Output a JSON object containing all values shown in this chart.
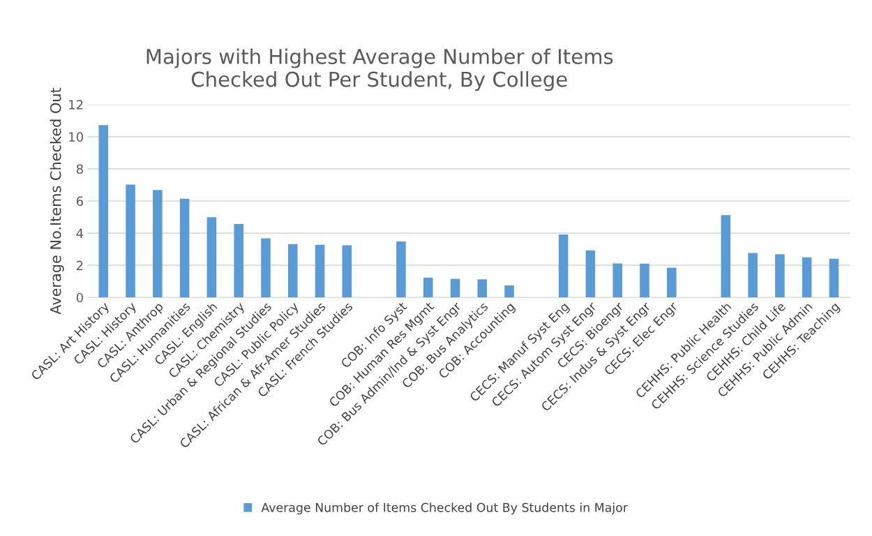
{
  "chart_data": {
    "type": "bar",
    "title": "Majors with Highest Average Number of Items\nChecked Out Per Student, By College",
    "ylabel": "Average No.Items Checked Out",
    "categories": [
      "CASL: Art History",
      "CASL: History",
      "CASL: Anthrop",
      "CASL: Humanities",
      "CASL: English",
      "CASL: Chemistry",
      "CASL: Urban & Regional Studies",
      "CASL: Public Policy",
      "CASL: African & Afr-Amer Studies",
      "CASL: French Studies",
      null,
      "COB: Info Syst",
      "COB: Human Res Mgmt",
      "COB: Bus Admin/Ind & Syst Engr",
      "COB: Bus Analytics",
      "COB: Accounting",
      null,
      "CECS: Manuf Syst Eng",
      "CECS: Autom Syst Engr",
      "CECS: Bioengr",
      "CECS: Indus & Syst Engr",
      "CECS: Elec Engr",
      null,
      "CEHHS: Public Health",
      "CEHHS: Science Studies",
      "CEHHS: Child Life",
      "CEHHS: Public Admin",
      "CEHHS: Teaching"
    ],
    "series": [
      {
        "name": "Average Number of Items Checked Out By Students in Major",
        "color": "#5b9bd5",
        "values": [
          10.72,
          7.02,
          6.68,
          6.14,
          4.99,
          4.57,
          3.68,
          3.32,
          3.28,
          3.24,
          null,
          3.48,
          1.24,
          1.16,
          1.13,
          0.75,
          null,
          3.92,
          2.93,
          2.12,
          2.11,
          1.86,
          null,
          5.12,
          2.77,
          2.69,
          2.49,
          2.41
        ]
      }
    ],
    "ylim": [
      0,
      12
    ],
    "yticks": [
      0,
      2,
      4,
      6,
      8,
      10,
      12
    ],
    "grid": "y",
    "legend": "bottom"
  }
}
